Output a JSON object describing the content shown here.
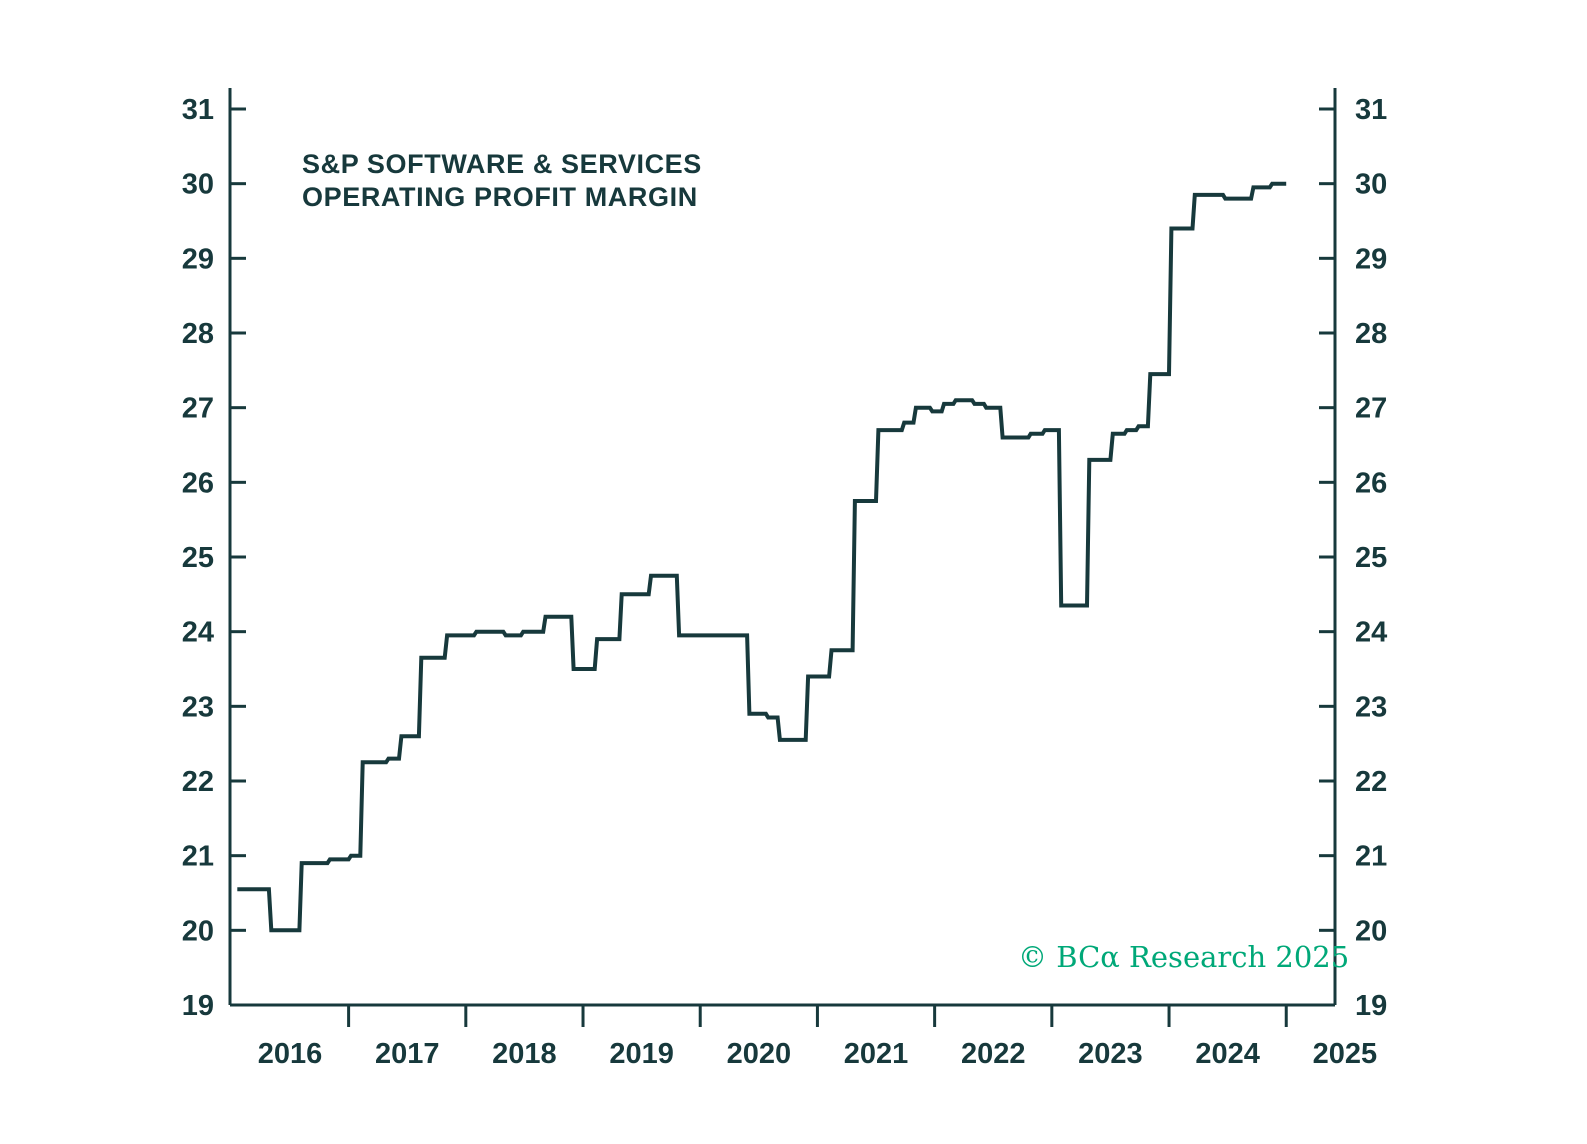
{
  "colors": {
    "ink": "#17393c",
    "line": "#17393c",
    "copyright": "#00a878",
    "background": "#ffffff"
  },
  "footer": {
    "copyright": "© BCα Research 2025"
  },
  "chart_data": {
    "type": "line",
    "title": "S&P SOFTWARE & SERVICES OPERATING PROFIT MARGIN",
    "title_line1": "S&P SOFTWARE & SERVICES",
    "title_line2": "OPERATING PROFIT MARGIN",
    "xlabel": "",
    "ylabel": "",
    "ylim": [
      19,
      31
    ],
    "xlim_years": [
      2015.5,
      2025.0
    ],
    "grid": false,
    "legend": "none",
    "y_axis": {
      "ticks": [
        19,
        20,
        21,
        22,
        23,
        24,
        25,
        26,
        27,
        28,
        29,
        30,
        31
      ],
      "sides": [
        "left",
        "right"
      ]
    },
    "x_axis": {
      "labels": [
        "2016",
        "2017",
        "2018",
        "2019",
        "2020",
        "2021",
        "2022",
        "2023",
        "2024",
        "2025"
      ],
      "minor_ticks": [
        2016.5,
        2017.5,
        2018.5,
        2019.5,
        2020.5,
        2021.5,
        2022.5,
        2023.5,
        2024.5
      ]
    },
    "series": [
      {
        "name": "S&P Software & Services Operating Profit Margin",
        "points": [
          [
            2015.55,
            20.55
          ],
          [
            2015.82,
            20.55
          ],
          [
            2015.84,
            20.0
          ],
          [
            2016.08,
            20.0
          ],
          [
            2016.1,
            20.9
          ],
          [
            2016.32,
            20.9
          ],
          [
            2016.34,
            20.95
          ],
          [
            2016.5,
            20.95
          ],
          [
            2016.52,
            21.0
          ],
          [
            2016.6,
            21.0
          ],
          [
            2016.62,
            22.25
          ],
          [
            2016.82,
            22.25
          ],
          [
            2016.84,
            22.3
          ],
          [
            2016.93,
            22.3
          ],
          [
            2016.95,
            22.6
          ],
          [
            2017.1,
            22.6
          ],
          [
            2017.12,
            23.65
          ],
          [
            2017.32,
            23.65
          ],
          [
            2017.34,
            23.95
          ],
          [
            2017.57,
            23.95
          ],
          [
            2017.59,
            24.0
          ],
          [
            2017.82,
            24.0
          ],
          [
            2017.84,
            23.95
          ],
          [
            2017.97,
            23.95
          ],
          [
            2017.99,
            24.0
          ],
          [
            2018.16,
            24.0
          ],
          [
            2018.18,
            24.2
          ],
          [
            2018.4,
            24.2
          ],
          [
            2018.42,
            23.5
          ],
          [
            2018.6,
            23.5
          ],
          [
            2018.62,
            23.9
          ],
          [
            2018.81,
            23.9
          ],
          [
            2018.83,
            24.5
          ],
          [
            2019.06,
            24.5
          ],
          [
            2019.08,
            24.75
          ],
          [
            2019.3,
            24.75
          ],
          [
            2019.32,
            23.95
          ],
          [
            2019.9,
            23.95
          ],
          [
            2019.92,
            22.9
          ],
          [
            2020.06,
            22.9
          ],
          [
            2020.08,
            22.85
          ],
          [
            2020.16,
            22.85
          ],
          [
            2020.18,
            22.55
          ],
          [
            2020.4,
            22.55
          ],
          [
            2020.42,
            23.4
          ],
          [
            2020.6,
            23.4
          ],
          [
            2020.62,
            23.75
          ],
          [
            2020.8,
            23.75
          ],
          [
            2020.82,
            25.75
          ],
          [
            2021.0,
            25.75
          ],
          [
            2021.02,
            26.7
          ],
          [
            2021.22,
            26.7
          ],
          [
            2021.24,
            26.8
          ],
          [
            2021.32,
            26.8
          ],
          [
            2021.34,
            27.0
          ],
          [
            2021.46,
            27.0
          ],
          [
            2021.48,
            26.95
          ],
          [
            2021.56,
            26.95
          ],
          [
            2021.58,
            27.05
          ],
          [
            2021.66,
            27.05
          ],
          [
            2021.68,
            27.1
          ],
          [
            2021.82,
            27.1
          ],
          [
            2021.84,
            27.05
          ],
          [
            2021.92,
            27.05
          ],
          [
            2021.94,
            27.0
          ],
          [
            2022.06,
            27.0
          ],
          [
            2022.08,
            26.6
          ],
          [
            2022.3,
            26.6
          ],
          [
            2022.32,
            26.65
          ],
          [
            2022.42,
            26.65
          ],
          [
            2022.44,
            26.7
          ],
          [
            2022.56,
            26.7
          ],
          [
            2022.58,
            24.35
          ],
          [
            2022.8,
            24.35
          ],
          [
            2022.82,
            26.3
          ],
          [
            2023.0,
            26.3
          ],
          [
            2023.02,
            26.65
          ],
          [
            2023.12,
            26.65
          ],
          [
            2023.14,
            26.7
          ],
          [
            2023.22,
            26.7
          ],
          [
            2023.24,
            26.75
          ],
          [
            2023.32,
            26.75
          ],
          [
            2023.34,
            27.45
          ],
          [
            2023.5,
            27.45
          ],
          [
            2023.52,
            29.4
          ],
          [
            2023.7,
            29.4
          ],
          [
            2023.72,
            29.85
          ],
          [
            2023.96,
            29.85
          ],
          [
            2023.98,
            29.8
          ],
          [
            2024.2,
            29.8
          ],
          [
            2024.22,
            29.95
          ],
          [
            2024.36,
            29.95
          ],
          [
            2024.38,
            30.0
          ],
          [
            2024.5,
            30.0
          ]
        ]
      }
    ]
  }
}
